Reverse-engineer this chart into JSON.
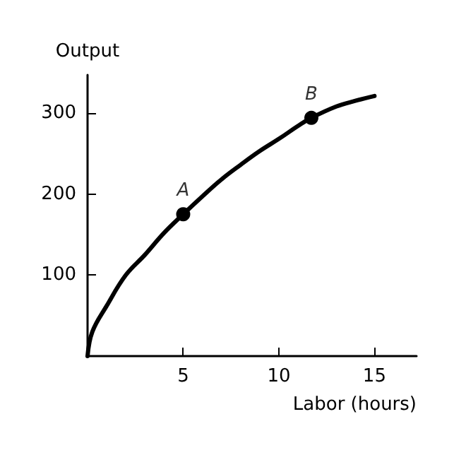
{
  "chart_data": {
    "type": "line",
    "xlabel": "Labor (hours)",
    "ylabel": "Output",
    "xlim": [
      0,
      17.2
    ],
    "ylim": [
      0,
      347
    ],
    "xticks": [
      5,
      10,
      15
    ],
    "yticks": [
      100,
      200,
      300
    ],
    "grid": false,
    "series": [
      {
        "color": "#000000",
        "marker": "none",
        "x": [
          0,
          0.25,
          1,
          2,
          3,
          4,
          5,
          6,
          7,
          8,
          9,
          10,
          11,
          11.7,
          13,
          14,
          15
        ],
        "values": [
          0,
          30,
          62,
          100,
          125,
          152,
          175,
          197,
          218,
          236,
          253,
          268,
          284,
          294,
          308,
          315,
          321
        ]
      },
      {
        "type": "scatter",
        "color": "#000000",
        "marker": "circle",
        "x": [
          5,
          11.7
        ],
        "values": [
          175,
          294
        ]
      }
    ],
    "annotations": [
      {
        "text": "A",
        "x": 5,
        "y": 175
      },
      {
        "text": "B",
        "x": 11.7,
        "y": 294
      }
    ]
  }
}
